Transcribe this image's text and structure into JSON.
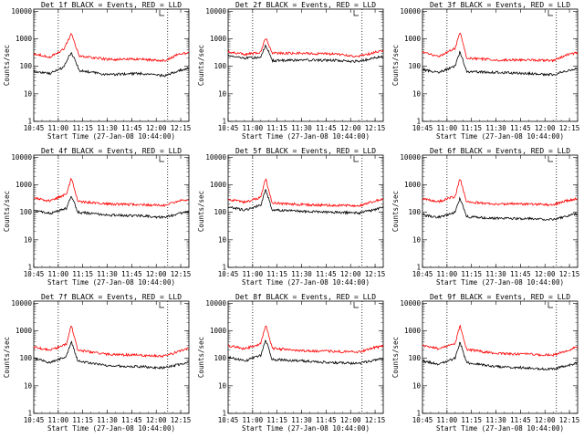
{
  "chart_data": [
    {
      "type": "line",
      "title": "Det 1f BLACK = Events, RED = LLD",
      "xlabel": "Start Time (27-Jan-08 10:44:00)",
      "ylabel": "Counts/sec",
      "yscale": "log",
      "ylim": [
        1,
        12000
      ],
      "xlim": [
        "10:45",
        "12:20"
      ],
      "x_ticks": [
        "10:45",
        "11:00",
        "11:15",
        "11:30",
        "11:45",
        "12:00",
        "12:15"
      ],
      "y_ticks": [
        "1",
        "10",
        "100",
        "1000",
        "10000"
      ],
      "vlines": [
        "11:00",
        "12:07"
      ],
      "legend": "top-right",
      "grid": false,
      "series": [
        {
          "name": "Events",
          "color": "#000000",
          "x": [
            "10:45",
            "10:55",
            "11:03",
            "11:08",
            "11:13",
            "11:30",
            "11:50",
            "12:05",
            "12:14",
            "12:20"
          ],
          "y": [
            65,
            55,
            90,
            330,
            70,
            50,
            55,
            45,
            70,
            85
          ]
        },
        {
          "name": "LLD",
          "color": "#ff0000",
          "x": [
            "10:45",
            "10:55",
            "11:03",
            "11:08",
            "11:13",
            "11:30",
            "11:50",
            "12:05",
            "12:14",
            "12:20"
          ],
          "y": [
            290,
            220,
            400,
            1500,
            240,
            180,
            180,
            160,
            280,
            310
          ]
        }
      ]
    },
    {
      "type": "line",
      "title": "Det 2f BLACK = Events, RED = LLD",
      "xlabel": "Start Time (27-Jan-08 10:44:00)",
      "ylabel": "Counts/sec",
      "yscale": "log",
      "ylim": [
        1,
        12000
      ],
      "xlim": [
        "10:45",
        "12:20"
      ],
      "x_ticks": [
        "10:45",
        "11:00",
        "11:15",
        "11:30",
        "11:45",
        "12:00",
        "12:15"
      ],
      "y_ticks": [
        "1",
        "10",
        "100",
        "1000",
        "10000"
      ],
      "vlines": [
        "11:00",
        "12:07"
      ],
      "legend": "top-right",
      "grid": false,
      "series": [
        {
          "name": "Events",
          "color": "#000000",
          "x": [
            "10:45",
            "10:55",
            "11:05",
            "11:08",
            "11:12",
            "11:30",
            "11:50",
            "12:05",
            "12:14",
            "12:20"
          ],
          "y": [
            250,
            200,
            210,
            620,
            160,
            170,
            165,
            150,
            200,
            230
          ]
        },
        {
          "name": "LLD",
          "color": "#ff0000",
          "x": [
            "10:45",
            "10:55",
            "11:05",
            "11:08",
            "11:12",
            "11:30",
            "11:50",
            "12:05",
            "12:14",
            "12:20"
          ],
          "y": [
            340,
            270,
            320,
            1100,
            300,
            300,
            280,
            230,
            310,
            370
          ]
        }
      ]
    },
    {
      "type": "line",
      "title": "Det 3f BLACK = Events, RED = LLD",
      "xlabel": "Start Time (27-Jan-08 10:44:00)",
      "ylabel": "Counts/sec",
      "yscale": "log",
      "ylim": [
        1,
        12000
      ],
      "xlim": [
        "10:45",
        "12:20"
      ],
      "x_ticks": [
        "10:45",
        "11:00",
        "11:15",
        "11:30",
        "11:45",
        "12:00",
        "12:15"
      ],
      "y_ticks": [
        "1",
        "10",
        "100",
        "1000",
        "10000"
      ],
      "vlines": [
        "11:00",
        "12:07"
      ],
      "legend": "top-right",
      "grid": false,
      "series": [
        {
          "name": "Events",
          "color": "#000000",
          "x": [
            "10:45",
            "10:55",
            "11:05",
            "11:08",
            "11:12",
            "11:30",
            "11:50",
            "12:05",
            "12:14",
            "12:20"
          ],
          "y": [
            75,
            60,
            100,
            340,
            65,
            60,
            55,
            50,
            70,
            80
          ]
        },
        {
          "name": "LLD",
          "color": "#ff0000",
          "x": [
            "10:45",
            "10:55",
            "11:05",
            "11:08",
            "11:12",
            "11:30",
            "11:50",
            "12:05",
            "12:14",
            "12:20"
          ],
          "y": [
            320,
            230,
            450,
            1700,
            200,
            170,
            170,
            160,
            270,
            310
          ]
        }
      ]
    },
    {
      "type": "line",
      "title": "Det 4f BLACK = Events, RED = LLD",
      "xlabel": "Start Time (27-Jan-08 10:44:00)",
      "ylabel": "Counts/sec",
      "yscale": "log",
      "ylim": [
        1,
        12000
      ],
      "xlim": [
        "10:45",
        "12:20"
      ],
      "x_ticks": [
        "10:45",
        "11:00",
        "11:15",
        "11:30",
        "11:45",
        "12:00",
        "12:15"
      ],
      "y_ticks": [
        "1",
        "10",
        "100",
        "1000",
        "10000"
      ],
      "vlines": [
        "11:00",
        "12:07"
      ],
      "legend": "top-right",
      "grid": false,
      "series": [
        {
          "name": "Events",
          "color": "#000000",
          "x": [
            "10:45",
            "10:55",
            "11:05",
            "11:08",
            "11:12",
            "11:30",
            "11:50",
            "12:05",
            "12:14",
            "12:20"
          ],
          "y": [
            120,
            90,
            140,
            420,
            100,
            80,
            75,
            65,
            90,
            110
          ]
        },
        {
          "name": "LLD",
          "color": "#ff0000",
          "x": [
            "10:45",
            "10:55",
            "11:05",
            "11:08",
            "11:12",
            "11:30",
            "11:50",
            "12:05",
            "12:14",
            "12:20"
          ],
          "y": [
            330,
            260,
            460,
            1700,
            250,
            200,
            190,
            180,
            260,
            300
          ]
        }
      ]
    },
    {
      "type": "line",
      "title": "Det 5f BLACK = Events, RED = LLD",
      "xlabel": "Start Time (27-Jan-08 10:44:00)",
      "ylabel": "Counts/sec",
      "yscale": "log",
      "ylim": [
        1,
        12000
      ],
      "xlim": [
        "10:45",
        "12:20"
      ],
      "x_ticks": [
        "10:45",
        "11:00",
        "11:15",
        "11:30",
        "11:45",
        "12:00",
        "12:15"
      ],
      "y_ticks": [
        "1",
        "10",
        "100",
        "1000",
        "10000"
      ],
      "vlines": [
        "11:00",
        "12:07"
      ],
      "legend": "top-right",
      "grid": false,
      "series": [
        {
          "name": "Events",
          "color": "#000000",
          "x": [
            "10:45",
            "10:55",
            "11:05",
            "11:08",
            "11:12",
            "11:30",
            "11:50",
            "12:05",
            "12:14",
            "12:20"
          ],
          "y": [
            160,
            120,
            180,
            700,
            120,
            110,
            100,
            95,
            120,
            150
          ]
        },
        {
          "name": "LLD",
          "color": "#ff0000",
          "x": [
            "10:45",
            "10:55",
            "11:05",
            "11:08",
            "11:12",
            "11:30",
            "11:50",
            "12:05",
            "12:14",
            "12:20"
          ],
          "y": [
            300,
            230,
            350,
            1700,
            220,
            190,
            180,
            170,
            250,
            310
          ]
        }
      ]
    },
    {
      "type": "line",
      "title": "Det 6f BLACK = Events, RED = LLD",
      "xlabel": "Start Time (27-Jan-08 10:44:00)",
      "ylabel": "Counts/sec",
      "yscale": "log",
      "ylim": [
        1,
        12000
      ],
      "xlim": [
        "10:45",
        "12:20"
      ],
      "x_ticks": [
        "10:45",
        "11:00",
        "11:15",
        "11:30",
        "11:45",
        "12:00",
        "12:15"
      ],
      "y_ticks": [
        "1",
        "10",
        "100",
        "1000",
        "10000"
      ],
      "vlines": [
        "11:00",
        "12:07"
      ],
      "legend": "top-right",
      "grid": false,
      "series": [
        {
          "name": "Events",
          "color": "#000000",
          "x": [
            "10:45",
            "10:55",
            "11:05",
            "11:08",
            "11:12",
            "11:30",
            "11:50",
            "12:05",
            "12:14",
            "12:20"
          ],
          "y": [
            80,
            65,
            100,
            330,
            70,
            60,
            60,
            55,
            75,
            90
          ]
        },
        {
          "name": "LLD",
          "color": "#ff0000",
          "x": [
            "10:45",
            "10:55",
            "11:05",
            "11:08",
            "11:12",
            "11:30",
            "11:50",
            "12:05",
            "12:14",
            "12:20"
          ],
          "y": [
            310,
            250,
            380,
            1700,
            240,
            200,
            200,
            190,
            270,
            320
          ]
        }
      ]
    },
    {
      "type": "line",
      "title": "Det 7f BLACK = Events, RED = LLD",
      "xlabel": "Start Time (27-Jan-08 10:44:00)",
      "ylabel": "Counts/sec",
      "yscale": "log",
      "ylim": [
        1,
        12000
      ],
      "xlim": [
        "10:45",
        "12:20"
      ],
      "x_ticks": [
        "10:45",
        "11:00",
        "11:15",
        "11:30",
        "11:45",
        "12:00",
        "12:15"
      ],
      "y_ticks": [
        "1",
        "10",
        "100",
        "1000",
        "10000"
      ],
      "vlines": [
        "11:00",
        "12:07"
      ],
      "legend": "top-right",
      "grid": false,
      "series": [
        {
          "name": "Events",
          "color": "#000000",
          "x": [
            "10:45",
            "10:55",
            "11:05",
            "11:08",
            "11:12",
            "11:30",
            "11:50",
            "12:05",
            "12:14",
            "12:20"
          ],
          "y": [
            100,
            70,
            120,
            420,
            80,
            55,
            50,
            45,
            60,
            75
          ]
        },
        {
          "name": "LLD",
          "color": "#ff0000",
          "x": [
            "10:45",
            "10:55",
            "11:05",
            "11:08",
            "11:12",
            "11:30",
            "11:50",
            "12:05",
            "12:14",
            "12:20"
          ],
          "y": [
            260,
            200,
            330,
            1500,
            200,
            140,
            130,
            120,
            180,
            230
          ]
        }
      ]
    },
    {
      "type": "line",
      "title": "Det 8f BLACK = Events, RED = LLD",
      "xlabel": "Start Time (27-Jan-08 10:44:00)",
      "ylabel": "Counts/sec",
      "yscale": "log",
      "ylim": [
        1,
        12000
      ],
      "xlim": [
        "10:45",
        "12:20"
      ],
      "x_ticks": [
        "10:45",
        "11:00",
        "11:15",
        "11:30",
        "11:45",
        "12:00",
        "12:15"
      ],
      "y_ticks": [
        "1",
        "10",
        "100",
        "1000",
        "10000"
      ],
      "vlines": [
        "11:00",
        "12:07"
      ],
      "legend": "top-right",
      "grid": false,
      "series": [
        {
          "name": "Events",
          "color": "#000000",
          "x": [
            "10:45",
            "10:55",
            "11:05",
            "11:08",
            "11:12",
            "11:30",
            "11:50",
            "12:05",
            "12:14",
            "12:20"
          ],
          "y": [
            110,
            80,
            130,
            480,
            90,
            80,
            70,
            65,
            85,
            100
          ]
        },
        {
          "name": "LLD",
          "color": "#ff0000",
          "x": [
            "10:45",
            "10:55",
            "11:05",
            "11:08",
            "11:12",
            "11:30",
            "11:50",
            "12:05",
            "12:14",
            "12:20"
          ],
          "y": [
            290,
            220,
            340,
            1700,
            230,
            190,
            180,
            170,
            240,
            280
          ]
        }
      ]
    },
    {
      "type": "line",
      "title": "Det 9f BLACK = Events, RED = LLD",
      "xlabel": "Start Time (27-Jan-08 10:44:00)",
      "ylabel": "Counts/sec",
      "yscale": "log",
      "ylim": [
        1,
        12000
      ],
      "xlim": [
        "10:45",
        "12:20"
      ],
      "x_ticks": [
        "10:45",
        "11:00",
        "11:15",
        "11:30",
        "11:45",
        "12:00",
        "12:15"
      ],
      "y_ticks": [
        "1",
        "10",
        "100",
        "1000",
        "10000"
      ],
      "vlines": [
        "11:00",
        "12:07"
      ],
      "legend": "top-right",
      "grid": false,
      "series": [
        {
          "name": "Events",
          "color": "#000000",
          "x": [
            "10:45",
            "10:55",
            "11:05",
            "11:08",
            "11:12",
            "11:30",
            "11:50",
            "12:05",
            "12:14",
            "12:20"
          ],
          "y": [
            80,
            60,
            100,
            380,
            70,
            50,
            45,
            40,
            55,
            70
          ]
        },
        {
          "name": "LLD",
          "color": "#ff0000",
          "x": [
            "10:45",
            "10:55",
            "11:05",
            "11:08",
            "11:12",
            "11:30",
            "11:50",
            "12:05",
            "12:14",
            "12:20"
          ],
          "y": [
            290,
            220,
            350,
            1600,
            210,
            150,
            140,
            130,
            200,
            250
          ]
        }
      ]
    }
  ]
}
